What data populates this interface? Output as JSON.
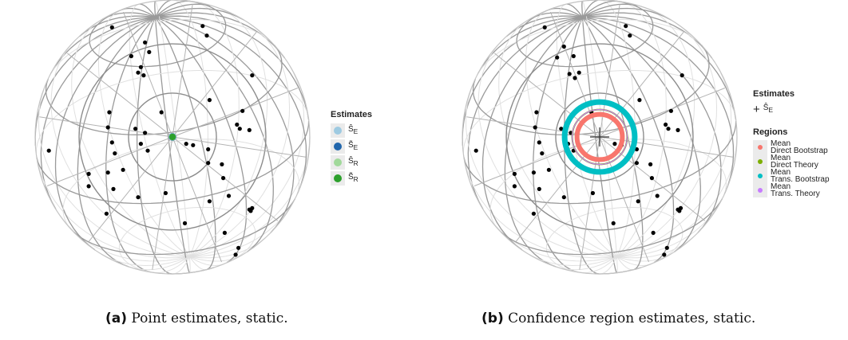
{
  "chart_data": [
    {
      "type": "scatter",
      "projection": "orthographic-sphere",
      "title": "",
      "caption_label": "(a)",
      "caption_text": "Point estimates, static.",
      "points_xy_unit_disk": [
        [
          -0.44,
          -0.8
        ],
        [
          0.22,
          -0.81
        ],
        [
          0.25,
          -0.74
        ],
        [
          -0.2,
          -0.69
        ],
        [
          -0.17,
          -0.62
        ],
        [
          -0.3,
          -0.59
        ],
        [
          -0.21,
          -0.45
        ],
        [
          -0.25,
          -0.47
        ],
        [
          -0.23,
          -0.51
        ],
        [
          0.27,
          -0.27
        ],
        [
          0.58,
          -0.45
        ],
        [
          0.51,
          -0.19
        ],
        [
          -0.46,
          -0.18
        ],
        [
          -0.08,
          -0.18
        ],
        [
          0.47,
          -0.09
        ],
        [
          0.49,
          -0.06
        ],
        [
          0.56,
          -0.05
        ],
        [
          -0.47,
          -0.07
        ],
        [
          -0.27,
          -0.06
        ],
        [
          -0.2,
          -0.03
        ],
        [
          -0.23,
          0.05
        ],
        [
          0.1,
          0.05
        ],
        [
          0.15,
          0.06
        ],
        [
          -0.44,
          0.04
        ],
        [
          -0.9,
          0.1
        ],
        [
          -0.42,
          0.12
        ],
        [
          0.26,
          0.09
        ],
        [
          -0.18,
          0.1
        ],
        [
          0.26,
          0.19
        ],
        [
          -0.36,
          0.24
        ],
        [
          0.36,
          0.2
        ],
        [
          -0.61,
          0.27
        ],
        [
          -0.47,
          0.26
        ],
        [
          0.37,
          0.3
        ],
        [
          -0.61,
          0.36
        ],
        [
          -0.43,
          0.38
        ],
        [
          -0.05,
          0.41
        ],
        [
          -0.25,
          0.44
        ],
        [
          0.27,
          0.47
        ],
        [
          0.58,
          0.52
        ],
        [
          0.56,
          0.53
        ],
        [
          0.57,
          0.54
        ],
        [
          -0.48,
          0.56
        ],
        [
          0.09,
          0.63
        ],
        [
          0.38,
          0.7
        ],
        [
          0.48,
          0.81
        ],
        [
          0.46,
          0.86
        ],
        [
          0.41,
          0.43
        ]
      ],
      "estimates": [
        {
          "label": "Ŝ",
          "sub": "E",
          "color": "#9ecae1",
          "xy": [
            0.0,
            0.0
          ]
        },
        {
          "label": "S̃",
          "sub": "E",
          "color": "#2166ac",
          "xy": [
            0.0,
            0.0
          ]
        },
        {
          "label": "Ŝ",
          "sub": "R",
          "color": "#a1d99b",
          "xy": [
            0.0,
            0.0
          ]
        },
        {
          "label": "S̃",
          "sub": "R",
          "color": "#2ca02c",
          "xy": [
            0.0,
            0.0
          ]
        }
      ],
      "legend": {
        "title": "Estimates",
        "placement": "right"
      }
    },
    {
      "type": "scatter",
      "projection": "orthographic-sphere",
      "title": "",
      "caption_label": "(b)",
      "caption_text": "Confidence region estimates, static.",
      "points_xy_unit_disk": [
        [
          -0.4,
          -0.8
        ],
        [
          0.19,
          -0.81
        ],
        [
          0.22,
          -0.74
        ],
        [
          -0.26,
          -0.66
        ],
        [
          -0.19,
          -0.59
        ],
        [
          -0.31,
          -0.58
        ],
        [
          -0.15,
          -0.47
        ],
        [
          -0.22,
          -0.46
        ],
        [
          -0.18,
          -0.43
        ],
        [
          0.29,
          -0.27
        ],
        [
          0.6,
          -0.45
        ],
        [
          0.52,
          -0.19
        ],
        [
          -0.46,
          -0.18
        ],
        [
          -0.06,
          -0.18
        ],
        [
          0.48,
          -0.09
        ],
        [
          0.5,
          -0.06
        ],
        [
          0.57,
          -0.05
        ],
        [
          -0.47,
          -0.07
        ],
        [
          -0.28,
          -0.06
        ],
        [
          -0.21,
          -0.03
        ],
        [
          -0.23,
          0.05
        ],
        [
          0.11,
          0.05
        ],
        [
          0.16,
          0.06
        ],
        [
          -0.44,
          0.04
        ],
        [
          -0.9,
          0.1
        ],
        [
          -0.42,
          0.12
        ],
        [
          0.27,
          0.09
        ],
        [
          -0.19,
          0.1
        ],
        [
          0.27,
          0.19
        ],
        [
          -0.37,
          0.24
        ],
        [
          0.37,
          0.2
        ],
        [
          -0.62,
          0.27
        ],
        [
          -0.48,
          0.26
        ],
        [
          0.38,
          0.3
        ],
        [
          -0.62,
          0.36
        ],
        [
          -0.44,
          0.38
        ],
        [
          -0.05,
          0.41
        ],
        [
          -0.26,
          0.44
        ],
        [
          0.28,
          0.47
        ],
        [
          0.59,
          0.52
        ],
        [
          0.57,
          0.53
        ],
        [
          0.58,
          0.54
        ],
        [
          -0.48,
          0.56
        ],
        [
          0.1,
          0.63
        ],
        [
          0.39,
          0.7
        ],
        [
          0.49,
          0.81
        ],
        [
          0.47,
          0.86
        ],
        [
          0.42,
          0.43
        ]
      ],
      "estimates": [
        {
          "label": "Ŝ",
          "sub": "E",
          "marker": "cross",
          "xy": [
            0.0,
            0.0
          ]
        }
      ],
      "regions": [
        {
          "name_line1": "Mean",
          "name_line2": "Direct Bootstrap",
          "color": "#f8766d",
          "radius": 0.165
        },
        {
          "name_line1": "Mean",
          "name_line2": "Direct Theory",
          "color": "#7cae00",
          "radius": 0.2
        },
        {
          "name_line1": "Mean",
          "name_line2": "Trans. Bootstrap",
          "color": "#00bfc4",
          "radius": 0.255
        },
        {
          "name_line1": "Mean",
          "name_line2": "Trans. Theory",
          "color": "#c77cff",
          "radius": 0.2
        }
      ],
      "legend": {
        "estimates_title": "Estimates",
        "regions_title": "Regions",
        "placement": "right"
      }
    }
  ]
}
